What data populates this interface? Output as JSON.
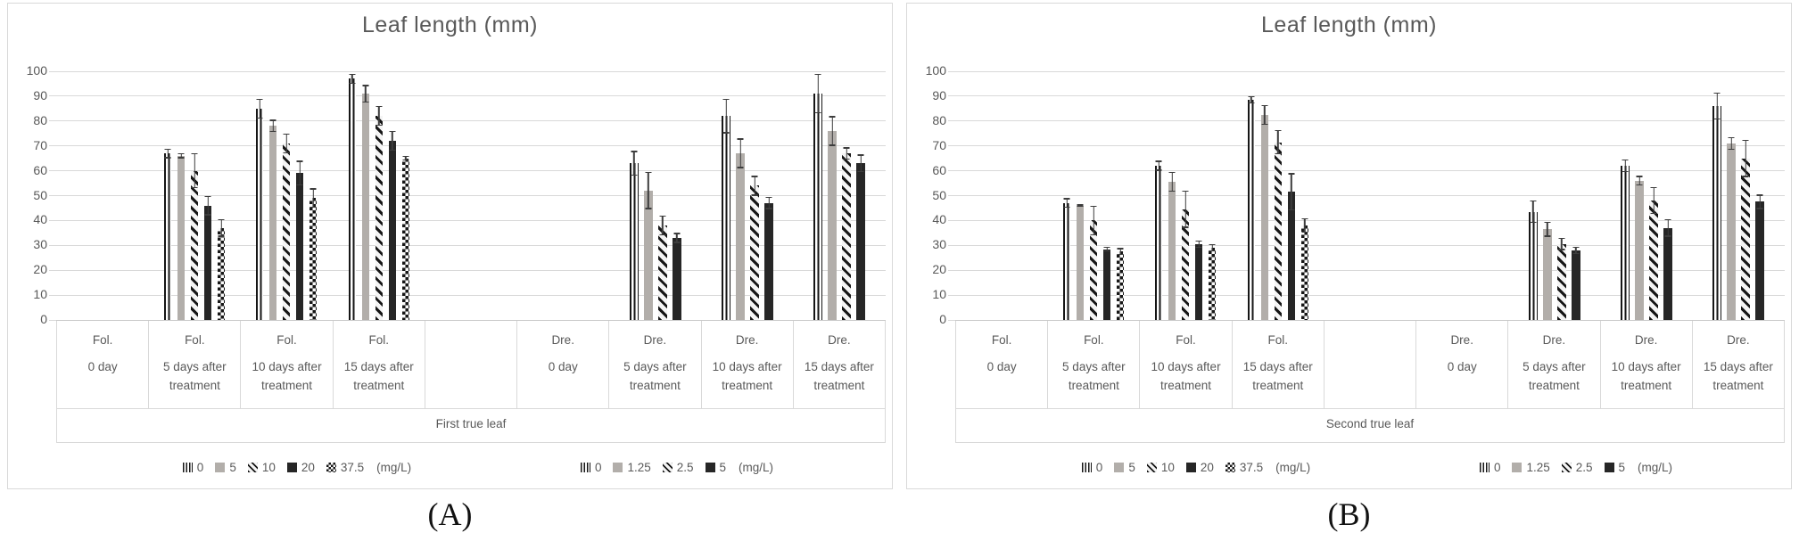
{
  "colors": {
    "bar_gray": "#b2aeaa",
    "bar_black": "#262626",
    "stripe_black": "#161616",
    "grid": "#d9d9d9",
    "text": "#595959",
    "error_bar": "#3d3d3d",
    "panel_border": "#d9d9d9"
  },
  "patterns": {
    "fol": [
      "vertical-stripes",
      "solid-gray",
      "diagonal-stripes",
      "solid-black",
      "checkerboard"
    ],
    "dre": [
      "vertical-stripes",
      "solid-gray",
      "diagonal-stripes",
      "solid-black"
    ],
    "none": []
  },
  "chart_data": [
    {
      "type": "bar",
      "panel_label": "(A)",
      "title": "Leaf length (mm)",
      "group_label": "First true leaf",
      "ylim": [
        0,
        100
      ],
      "yticks": [
        0,
        10,
        20,
        30,
        40,
        50,
        60,
        70,
        80,
        90,
        100
      ],
      "grid": true,
      "legend_position": "bottom",
      "foliar_series_mgL": [
        "0",
        "5",
        "10",
        "20",
        "37.5"
      ],
      "drench_series_mgL": [
        "0",
        "1.25",
        "2.5",
        "5"
      ],
      "slots": [
        {
          "treatment": "Fol.",
          "day": "0 day",
          "set": "fol",
          "values": [],
          "errors": []
        },
        {
          "treatment": "Fol.",
          "day": "5 days after treatment",
          "set": "fol",
          "values": [
            67,
            66,
            60,
            46,
            37
          ],
          "errors": [
            2,
            1,
            7,
            4,
            3.5
          ]
        },
        {
          "treatment": "Fol.",
          "day": "10 days after treatment",
          "set": "fol",
          "values": [
            85,
            78,
            71,
            59,
            49
          ],
          "errors": [
            4,
            2.5,
            4,
            5,
            4
          ]
        },
        {
          "treatment": "Fol.",
          "day": "15 days after treatment",
          "set": "fol",
          "values": [
            97,
            91,
            82,
            72,
            65
          ],
          "errors": [
            2,
            3.5,
            4,
            4,
            1
          ]
        },
        {
          "treatment": "",
          "day": "",
          "set": "none",
          "values": [],
          "errors": []
        },
        {
          "treatment": "Dre.",
          "day": "0 day",
          "set": "dre",
          "values": [],
          "errors": []
        },
        {
          "treatment": "Dre.",
          "day": "5 days after treatment",
          "set": "dre",
          "values": [
            63,
            52,
            38,
            33
          ],
          "errors": [
            5,
            7.5,
            4,
            2
          ]
        },
        {
          "treatment": "Dre.",
          "day": "10 days after treatment",
          "set": "dre",
          "values": [
            82,
            67,
            54,
            47
          ],
          "errors": [
            7,
            6,
            4,
            2.5
          ]
        },
        {
          "treatment": "Dre.",
          "day": "15 days after treatment",
          "set": "dre",
          "values": [
            91,
            76,
            67,
            63
          ],
          "errors": [
            8,
            6,
            2.5,
            3.5
          ]
        }
      ],
      "legends": [
        {
          "entries": [
            {
              "label": "0",
              "pattern": "vertical-stripes"
            },
            {
              "label": "5",
              "pattern": "solid-gray"
            },
            {
              "label": "10",
              "pattern": "diagonal-stripes"
            },
            {
              "label": "20",
              "pattern": "solid-black"
            },
            {
              "label": "37.5",
              "pattern": "checkerboard"
            }
          ],
          "unit": "(mg/L)"
        },
        {
          "entries": [
            {
              "label": "0",
              "pattern": "vertical-stripes"
            },
            {
              "label": "1.25",
              "pattern": "solid-gray"
            },
            {
              "label": "2.5",
              "pattern": "diagonal-stripes"
            },
            {
              "label": "5",
              "pattern": "solid-black"
            }
          ],
          "unit": "(mg/L)"
        }
      ]
    },
    {
      "type": "bar",
      "panel_label": "(B)",
      "title": "Leaf length (mm)",
      "group_label": "Second true leaf",
      "ylim": [
        0,
        100
      ],
      "yticks": [
        0,
        10,
        20,
        30,
        40,
        50,
        60,
        70,
        80,
        90,
        100
      ],
      "grid": true,
      "legend_position": "bottom",
      "foliar_series_mgL": [
        "0",
        "5",
        "10",
        "20",
        "37.5"
      ],
      "drench_series_mgL": [
        "0",
        "1.25",
        "2.5",
        "5"
      ],
      "slots": [
        {
          "treatment": "Fol.",
          "day": "0 day",
          "set": "fol",
          "values": [],
          "errors": []
        },
        {
          "treatment": "Fol.",
          "day": "5 days after treatment",
          "set": "fol",
          "values": [
            47,
            46,
            40,
            28.5,
            27.5
          ],
          "errors": [
            2,
            0.5,
            6,
            1,
            1.5
          ]
        },
        {
          "treatment": "Fol.",
          "day": "10 days after treatment",
          "set": "fol",
          "values": [
            62,
            55.5,
            44.5,
            30.5,
            29
          ],
          "errors": [
            2,
            4,
            7.5,
            1.5,
            1.5
          ]
        },
        {
          "treatment": "Fol.",
          "day": "15 days after treatment",
          "set": "fol",
          "values": [
            88.5,
            82.5,
            71.5,
            51.5,
            38
          ],
          "errors": [
            1.5,
            4,
            5,
            7.5,
            3
          ]
        },
        {
          "treatment": "",
          "day": "",
          "set": "none",
          "values": [],
          "errors": []
        },
        {
          "treatment": "Dre.",
          "day": "0 day",
          "set": "dre",
          "values": [],
          "errors": []
        },
        {
          "treatment": "Dre.",
          "day": "5 days after treatment",
          "set": "dre",
          "values": [
            43.5,
            36.5,
            30.5,
            28
          ],
          "errors": [
            4.5,
            3,
            2.5,
            1.5
          ]
        },
        {
          "treatment": "Dre.",
          "day": "10 days after treatment",
          "set": "dre",
          "values": [
            62,
            56,
            48,
            37
          ],
          "errors": [
            2.5,
            2,
            5.5,
            3.5
          ]
        },
        {
          "treatment": "Dre.",
          "day": "15 days after treatment",
          "set": "dre",
          "values": [
            86,
            71,
            65,
            47.5
          ],
          "errors": [
            5.5,
            2.5,
            7.5,
            3
          ]
        }
      ],
      "legends": [
        {
          "entries": [
            {
              "label": "0",
              "pattern": "vertical-stripes"
            },
            {
              "label": "5",
              "pattern": "solid-gray"
            },
            {
              "label": "10",
              "pattern": "diagonal-stripes"
            },
            {
              "label": "20",
              "pattern": "solid-black"
            },
            {
              "label": "37.5",
              "pattern": "checkerboard"
            }
          ],
          "unit": "(mg/L)"
        },
        {
          "entries": [
            {
              "label": "0",
              "pattern": "vertical-stripes"
            },
            {
              "label": "1.25",
              "pattern": "solid-gray"
            },
            {
              "label": "2.5",
              "pattern": "diagonal-stripes"
            },
            {
              "label": "5",
              "pattern": "solid-black"
            }
          ],
          "unit": "(mg/L)"
        }
      ]
    }
  ]
}
